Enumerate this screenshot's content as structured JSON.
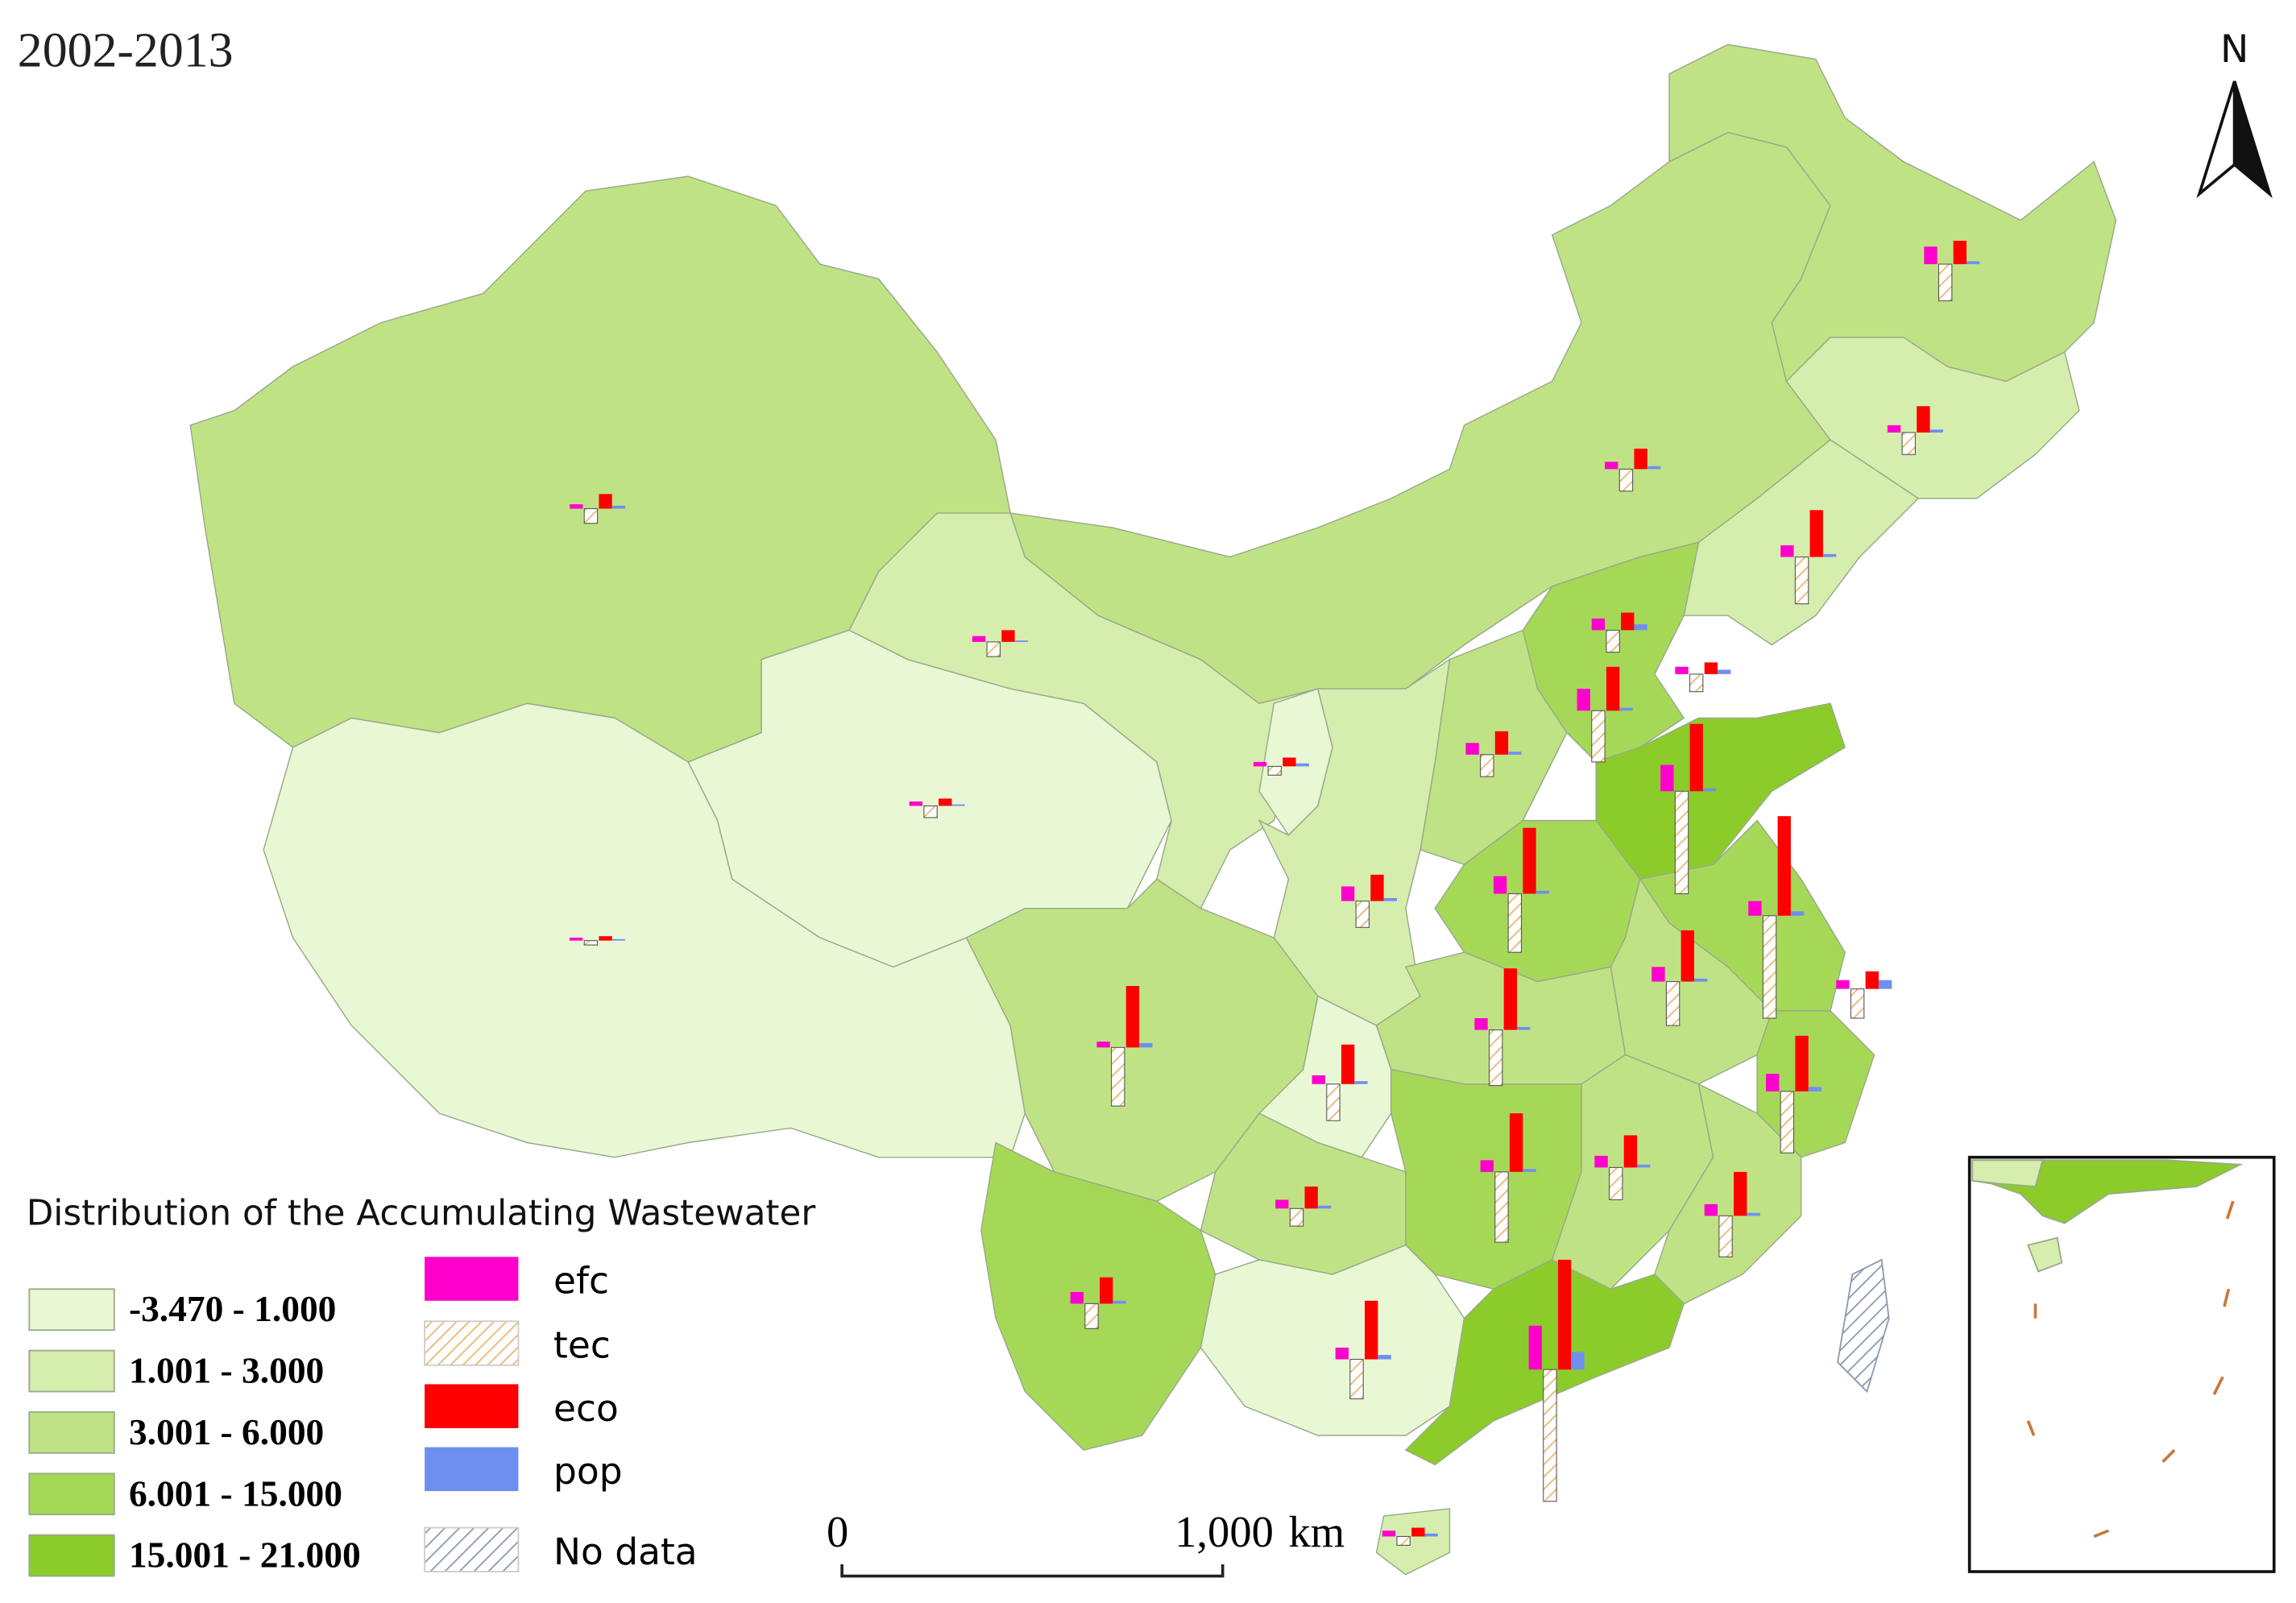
{
  "chart_data": {
    "type": "map",
    "title": "2002-2013",
    "north_label": "N",
    "legend_title": "Distribution of the Accumulating Wastewater",
    "classes": [
      {
        "label": "-3.470 - 1.000",
        "color": "#e8f8d4"
      },
      {
        "label": "1.001 - 3.000",
        "color": "#d5eeae"
      },
      {
        "label": "3.001 - 6.000",
        "color": "#bfe384"
      },
      {
        "label": "6.001 - 15.000",
        "color": "#a6d858"
      },
      {
        "label": "15.001 - 21.000",
        "color": "#8bcc2a"
      }
    ],
    "region_colors": [
      "#bfe384",
      "#e8f8d4",
      "#e8f8d4",
      "#d5eeae",
      "#bfe384",
      "#bfe384",
      "#d5eeae",
      "#d5eeae",
      "#a6d858",
      "#bfe384",
      "#e8f8d4",
      "#d5eeae",
      "#8bcc2a",
      "#a6d858",
      "#a6d858",
      "#bfe384",
      "#a6d858",
      "#bfe384",
      "#bfe384",
      "#e8f8d4",
      "#bfe384",
      "#a6d858",
      "#a6d858",
      "#bfe384",
      "#bfe384",
      "#e8f8d4",
      "#8bcc2a",
      "#d5eeae"
    ],
    "series": [
      {
        "name": "efc",
        "color": "#ff00cc",
        "values": [
          3,
          2,
          3,
          4,
          12,
          5,
          5,
          8,
          8,
          5,
          15,
          8,
          3,
          18,
          12,
          10,
          6,
          10,
          10,
          8,
          4,
          6,
          12,
          8,
          8,
          6,
          8,
          8,
          8,
          30,
          4
        ]
      },
      {
        "name": "tec",
        "color": "#e8b878",
        "values": [
          -10,
          -3,
          -8,
          -10,
          -25,
          -15,
          -15,
          -32,
          -15,
          -12,
          -35,
          -15,
          -6,
          -70,
          -40,
          -70,
          -20,
          -30,
          -18,
          -38,
          -40,
          -25,
          -42,
          -48,
          -22,
          -12,
          -28,
          -17,
          -27,
          -90,
          -6
        ]
      },
      {
        "name": "eco",
        "color": "#ff0000",
        "values": [
          10,
          3,
          5,
          8,
          16,
          18,
          14,
          32,
          12,
          8,
          30,
          16,
          6,
          46,
          45,
          68,
          12,
          35,
          18,
          42,
          42,
          27,
          38,
          40,
          22,
          15,
          30,
          18,
          40,
          75,
          6
        ]
      },
      {
        "name": "pop",
        "color": "#6f8ff0",
        "values": [
          2,
          1,
          1,
          1,
          2,
          2,
          2,
          2,
          4,
          3,
          2,
          2,
          2,
          2,
          2,
          3,
          6,
          2,
          2,
          2,
          3,
          2,
          3,
          2,
          2,
          2,
          2,
          2,
          3,
          12,
          2
        ]
      }
    ],
    "no_data_label": "No data",
    "scale_bar": {
      "labels": [
        "0",
        "1,000"
      ],
      "unit": "km"
    }
  }
}
